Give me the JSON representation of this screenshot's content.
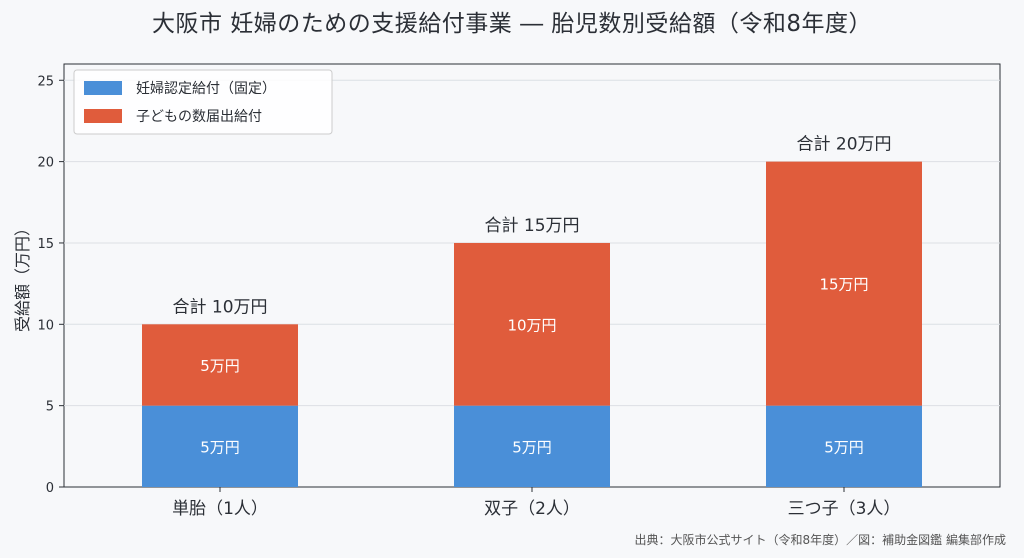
{
  "title": "大阪市 妊婦のための支援給付事業 ― 胎児数別受給額（令和8年度）",
  "source": "出典：大阪市公式サイト（令和8年度）／図：補助金図鑑 編集部作成",
  "chart_data": {
    "type": "bar",
    "stacked": true,
    "categories": [
      "単胎（1人）",
      "双子（2人）",
      "三つ子（3人）"
    ],
    "series": [
      {
        "name": "妊婦認定給付（固定）",
        "values": [
          5,
          5,
          5
        ],
        "labels": [
          "5万円",
          "5万円",
          "5万円"
        ],
        "color": "#4a8fd8"
      },
      {
        "name": "子どもの数届出給付",
        "values": [
          5,
          10,
          15
        ],
        "labels": [
          "5万円",
          "10万円",
          "15万円"
        ],
        "color": "#e05c3c"
      }
    ],
    "totals": [
      "合計 10万円",
      "合計 15万円",
      "合計 20万円"
    ],
    "ylabel": "受給額（万円）",
    "xlabel": "",
    "ylim": [
      0,
      26
    ],
    "yticks": [
      0,
      5,
      10,
      15,
      20,
      25
    ],
    "grid": "horizontal",
    "legend": "top-left"
  }
}
